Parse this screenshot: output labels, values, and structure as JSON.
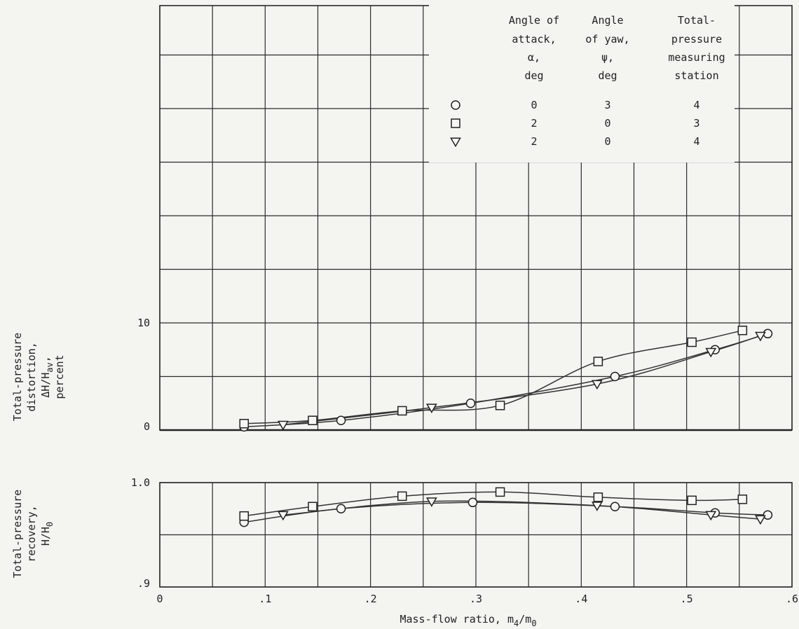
{
  "chart_data": [
    {
      "type": "scatter",
      "panel": "distortion",
      "title": "",
      "xlabel": "",
      "ylabel_lines": [
        "Total-pressure",
        "distortion,",
        "ΔH/H",
        "percent"
      ],
      "ylabel_sub": "av",
      "ylabel_suffix": ",",
      "xlim": [
        0,
        0.6
      ],
      "ylim": [
        0,
        10
      ],
      "yticks": [
        "0",
        "10"
      ],
      "grid": true,
      "legend": {
        "placement": "top-right",
        "headers": [
          [
            "Angle of",
            "attack,",
            "α,",
            "deg"
          ],
          [
            "Angle",
            "of yaw,",
            "ψ,",
            "deg"
          ],
          [
            "Total-",
            "pressure",
            "measuring",
            "station"
          ]
        ],
        "rows": [
          {
            "marker": "circle",
            "alpha": "0",
            "psi": "3",
            "station": "4"
          },
          {
            "marker": "square",
            "alpha": "2",
            "psi": "0",
            "station": "3"
          },
          {
            "marker": "triangle-down",
            "alpha": "2",
            "psi": "0",
            "station": "4"
          }
        ]
      },
      "series": [
        {
          "marker": "circle",
          "x": [
            0.08,
            0.172,
            0.295,
            0.432,
            0.527,
            0.577
          ],
          "y": [
            0.3,
            0.9,
            2.5,
            5.0,
            7.5,
            9.0
          ]
        },
        {
          "marker": "square",
          "x": [
            0.08,
            0.145,
            0.23,
            0.323,
            0.416,
            0.505,
            0.553
          ],
          "y": [
            0.6,
            0.9,
            1.8,
            2.3,
            6.4,
            8.2,
            9.3
          ]
        },
        {
          "marker": "triangle-down",
          "x": [
            0.117,
            0.258,
            0.415,
            0.523,
            0.57
          ],
          "y": [
            0.5,
            2.1,
            4.3,
            7.3,
            8.8
          ]
        }
      ]
    },
    {
      "type": "scatter",
      "panel": "recovery",
      "title": "",
      "xlabel": "Mass-flow ratio, m",
      "xlabel_parts": [
        "4",
        "/m",
        "0"
      ],
      "ylabel_lines": [
        "Total-pressure",
        "recovery,",
        "H/H"
      ],
      "ylabel_sub": "0",
      "xlim": [
        0,
        0.6
      ],
      "ylim": [
        0.9,
        1.0
      ],
      "xticks": [
        "0",
        ".1",
        ".2",
        ".3",
        ".4",
        ".5",
        ".6"
      ],
      "yticks": [
        ".9",
        "1.0"
      ],
      "grid": true,
      "series": [
        {
          "marker": "circle",
          "x": [
            0.08,
            0.172,
            0.297,
            0.432,
            0.527,
            0.577
          ],
          "y": [
            0.962,
            0.975,
            0.981,
            0.977,
            0.971,
            0.969
          ]
        },
        {
          "marker": "square",
          "x": [
            0.08,
            0.145,
            0.23,
            0.323,
            0.416,
            0.505,
            0.553
          ],
          "y": [
            0.968,
            0.977,
            0.987,
            0.991,
            0.986,
            0.983,
            0.984
          ]
        },
        {
          "marker": "triangle-down",
          "x": [
            0.117,
            0.258,
            0.415,
            0.523,
            0.57
          ],
          "y": [
            0.969,
            0.982,
            0.978,
            0.969,
            0.965
          ]
        }
      ]
    }
  ]
}
